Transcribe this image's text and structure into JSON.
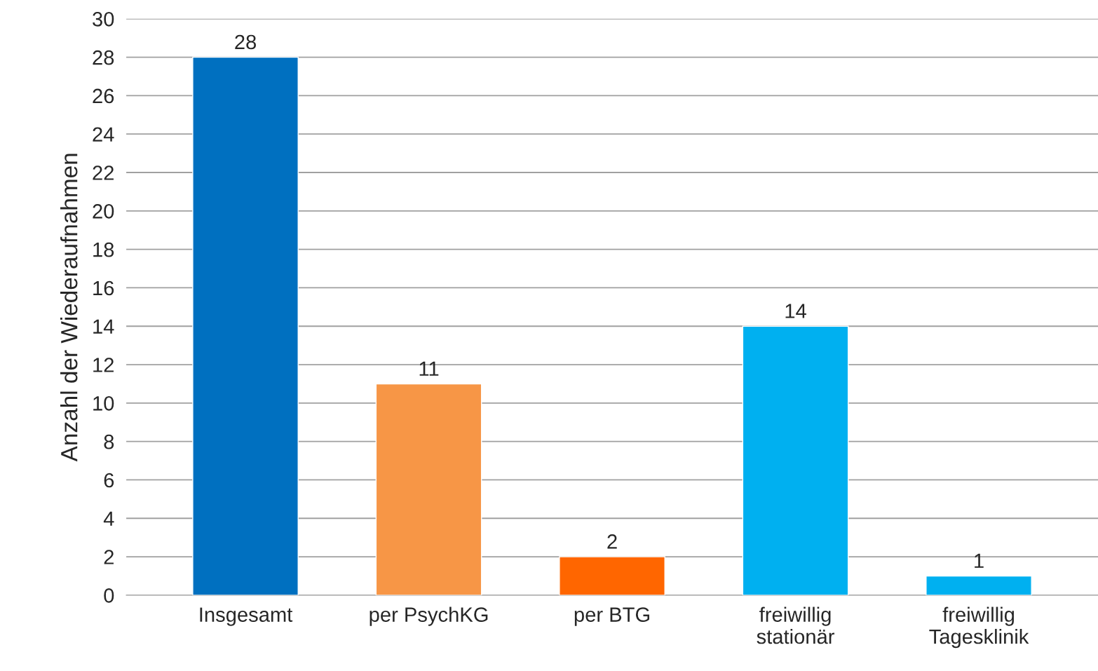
{
  "chart_data": {
    "type": "bar",
    "ylabel": "Anzahl der Wiederaufnahmen",
    "categories": [
      "Insgesamt",
      "per PsychKG",
      "per BTG",
      "freiwillig\nstationär",
      "freiwillig\nTagesklinik"
    ],
    "values": [
      28,
      11,
      2,
      14,
      1
    ],
    "colors": [
      "#0070c0",
      "#f79646",
      "#ff6600",
      "#00b0f0",
      "#00b0f0"
    ],
    "ylim": [
      0,
      30
    ],
    "yticks": [
      0,
      2,
      4,
      6,
      8,
      10,
      12,
      14,
      16,
      18,
      20,
      22,
      24,
      26,
      28,
      30
    ],
    "grid": "y",
    "data_labels": true
  }
}
